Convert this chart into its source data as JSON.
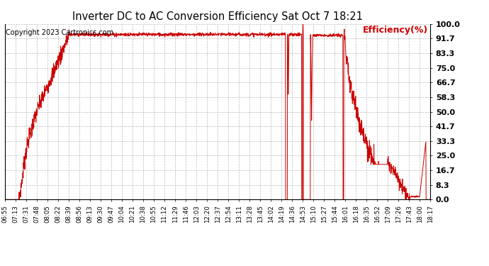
{
  "title": "Inverter DC to AC Conversion Efficiency Sat Oct 7 18:21",
  "copyright": "Copyright 2023 Cartronics.com",
  "legend_label": "Efficiency(%)",
  "line_color": "#cc0000",
  "legend_color": "#cc0000",
  "background_color": "#ffffff",
  "grid_color": "#bbbbbb",
  "ylim": [
    0.0,
    100.0
  ],
  "yticks": [
    0.0,
    8.3,
    16.7,
    25.0,
    33.3,
    41.7,
    50.0,
    58.3,
    66.7,
    75.0,
    83.3,
    91.7,
    100.0
  ],
  "xtick_labels": [
    "06:55",
    "07:13",
    "07:31",
    "07:48",
    "08:05",
    "08:22",
    "08:39",
    "08:56",
    "09:13",
    "09:30",
    "09:47",
    "10:04",
    "10:21",
    "10:38",
    "10:55",
    "11:12",
    "11:29",
    "11:46",
    "12:03",
    "12:20",
    "12:37",
    "12:54",
    "13:11",
    "13:28",
    "13:45",
    "14:02",
    "14:19",
    "14:36",
    "14:53",
    "15:10",
    "15:27",
    "15:44",
    "16:01",
    "16:18",
    "16:35",
    "16:52",
    "17:09",
    "17:26",
    "17:43",
    "18:00",
    "18:17"
  ]
}
